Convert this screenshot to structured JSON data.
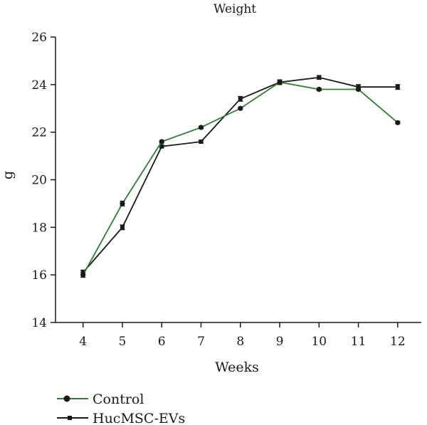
{
  "chart_data": {
    "type": "line",
    "title": "Weight",
    "xlabel": "Weeks",
    "ylabel": "g",
    "x": [
      4,
      5,
      6,
      7,
      8,
      9,
      10,
      11,
      12
    ],
    "xlim": [
      3.3,
      12.6
    ],
    "ylim": [
      14,
      26
    ],
    "yticks": [
      14,
      16,
      18,
      20,
      22,
      24,
      26
    ],
    "grid": false,
    "legend_position": "bottom-left",
    "series": [
      {
        "name": "Control",
        "color": "#2e7d32",
        "marker": "circle",
        "values": [
          16.0,
          19.0,
          21.6,
          22.2,
          23.0,
          24.1,
          23.8,
          23.8,
          22.4
        ],
        "errors": [
          0.1,
          0.1,
          0.05,
          0.05,
          0.05,
          0.05,
          0.05,
          0.05,
          0.05
        ]
      },
      {
        "name": "HucMSC-EVs",
        "color": "#1a1a1a",
        "marker": "square",
        "values": [
          16.1,
          18.0,
          21.4,
          21.6,
          23.4,
          24.1,
          24.3,
          23.9,
          23.9
        ],
        "errors": [
          0.1,
          0.1,
          0.05,
          0.05,
          0.1,
          0.1,
          0.08,
          0.1,
          0.1
        ]
      }
    ]
  }
}
